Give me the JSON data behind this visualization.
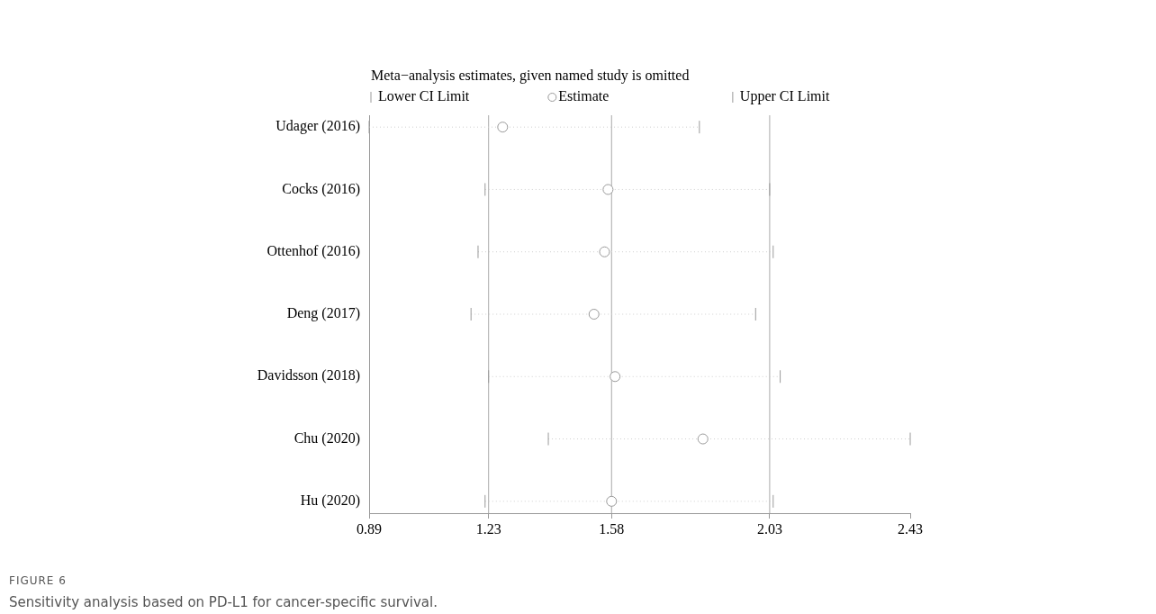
{
  "chart_data": {
    "type": "scatter",
    "orientation": "horizontal",
    "title": "Meta−analysis estimates, given named study is omitted",
    "categories": [
      "Udager (2016)",
      "Cocks (2016)",
      "Ottenhof (2016)",
      "Deng (2017)",
      "Davidsson (2018)",
      "Chu (2020)",
      "Hu (2020)"
    ],
    "series": [
      {
        "name": "Estimate",
        "color": "#9a9a9a",
        "values": [
          1.27,
          1.57,
          1.56,
          1.53,
          1.59,
          1.84,
          1.58
        ],
        "errors": [
          [
            0.89,
            1.83
          ],
          [
            1.22,
            2.03
          ],
          [
            1.2,
            2.04
          ],
          [
            1.18,
            1.99
          ],
          [
            1.23,
            2.06
          ],
          [
            1.4,
            2.43
          ],
          [
            1.22,
            2.04
          ]
        ]
      }
    ],
    "marker": "circle",
    "line_style": "dotted",
    "xlim": [
      0.89,
      2.43
    ],
    "xticks": [
      0.89,
      1.23,
      1.58,
      2.03,
      2.43
    ],
    "ref_lines": [
      {
        "axis": "x",
        "value": 1.23,
        "color": "#aaaaaa"
      },
      {
        "axis": "x",
        "value": 1.58,
        "color": "#aaaaaa"
      },
      {
        "axis": "x",
        "value": 2.03,
        "color": "#aaaaaa"
      }
    ],
    "grid": false,
    "legend": "top left",
    "annotations": [
      "Lower CI Limit",
      "Upper CI Limit",
      "FIGURE 6",
      "Sensitivity analysis based on PD-L1 for cancer-specific survival."
    ]
  }
}
